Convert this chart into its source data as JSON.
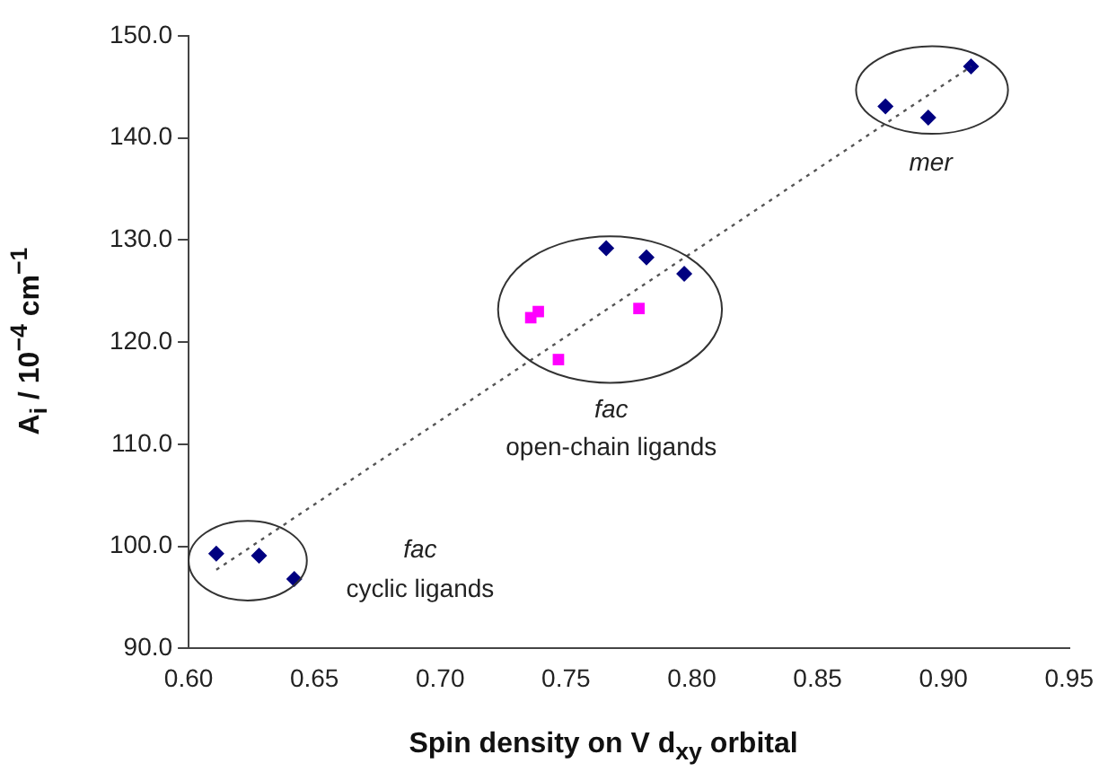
{
  "chart_data": {
    "type": "scatter",
    "xlabel": "Spin density on V d$_{xy}$ orbital",
    "ylabel": "A$_{i}$ / 10$^{−4}$ cm$^{−1}$",
    "xlim": [
      0.6,
      0.95
    ],
    "xticks": [
      {
        "value": 0.6,
        "label": "0.60"
      },
      {
        "value": 0.65,
        "label": "0.65"
      },
      {
        "value": 0.7,
        "label": "0.70"
      },
      {
        "value": 0.75,
        "label": "0.75"
      },
      {
        "value": 0.8,
        "label": "0.80"
      },
      {
        "value": 0.85,
        "label": "0.85"
      },
      {
        "value": 0.9,
        "label": "0.90"
      },
      {
        "value": 0.95,
        "label": "0.95"
      }
    ],
    "ylim": [
      90,
      150
    ],
    "yticks": [
      {
        "value": 90,
        "label": "90.0"
      },
      {
        "value": 100,
        "label": "100.0"
      },
      {
        "value": 110,
        "label": "110.0"
      },
      {
        "value": 120,
        "label": "120.0"
      },
      {
        "value": 130,
        "label": "130.0"
      },
      {
        "value": 140,
        "label": "140.0"
      },
      {
        "value": 150,
        "label": "150.0"
      }
    ],
    "grid": false,
    "legend": false,
    "series": [
      {
        "type": "line",
        "color": "#555555",
        "line_style": "dotted",
        "marker": "none",
        "x": [
          0.611,
          0.911
        ],
        "values": [
          97.7,
          147.0
        ]
      },
      {
        "type": "scatter",
        "color": "#000080",
        "marker": "diamond",
        "x": [
          0.611,
          0.628,
          0.642,
          0.766,
          0.782,
          0.797,
          0.877,
          0.894,
          0.911
        ],
        "values": [
          99.3,
          99.1,
          96.8,
          129.2,
          128.3,
          126.7,
          143.1,
          142.0,
          147.0
        ]
      },
      {
        "type": "scatter",
        "color": "#ff00ff",
        "marker": "square",
        "x": [
          0.736,
          0.739,
          0.747,
          0.779
        ],
        "values": [
          122.4,
          123.0,
          118.3,
          123.3
        ]
      }
    ],
    "annotations": [
      "fac",
      "cyclic ligands",
      "fac",
      "open-chain ligands",
      "mer"
    ]
  }
}
